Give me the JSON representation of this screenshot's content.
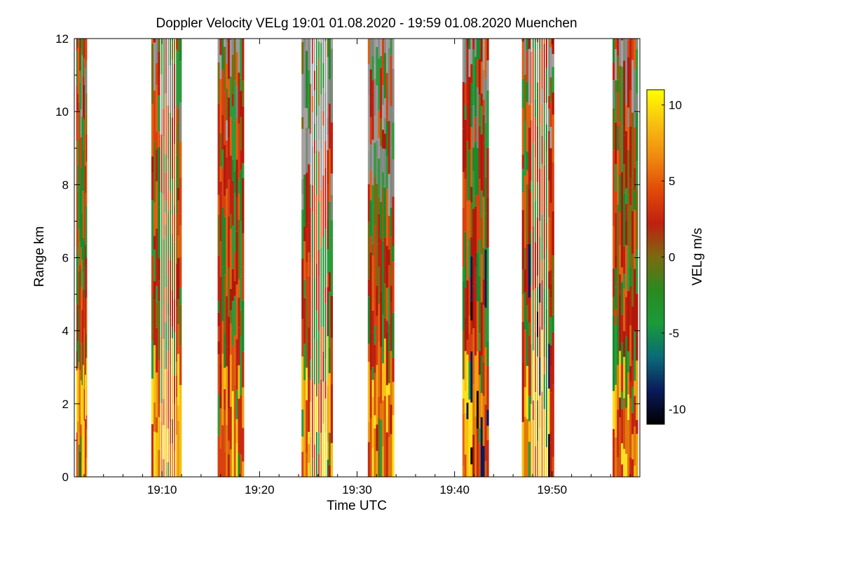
{
  "chart_data": {
    "type": "heatmap",
    "title": "Doppler Velocity VELg   19:01 01.08.2020 - 19:59 01.08.2020 Muenchen",
    "xlabel": "Time UTC",
    "ylabel": "Range km",
    "xlim_minutes": [
      1141,
      1199
    ],
    "x_ticks": [
      {
        "minute": 1150,
        "label": "19:10"
      },
      {
        "minute": 1160,
        "label": "19:20"
      },
      {
        "minute": 1170,
        "label": "19:30"
      },
      {
        "minute": 1180,
        "label": "19:40"
      },
      {
        "minute": 1190,
        "label": "19:50"
      }
    ],
    "ylim": [
      0,
      12
    ],
    "y_ticks": [
      {
        "value": 0,
        "label": "0"
      },
      {
        "value": 2,
        "label": "2"
      },
      {
        "value": 4,
        "label": "4"
      },
      {
        "value": 6,
        "label": "6"
      },
      {
        "value": 8,
        "label": "8"
      },
      {
        "value": 10,
        "label": "10"
      },
      {
        "value": 12,
        "label": "12"
      }
    ],
    "colorbar": {
      "label": "VELg m/s",
      "range": [
        -11,
        11
      ],
      "ticks": [
        {
          "value": 10,
          "label": "10"
        },
        {
          "value": 5,
          "label": "5"
        },
        {
          "value": 0,
          "label": "0"
        },
        {
          "value": -5,
          "label": "-5"
        },
        {
          "value": -10,
          "label": "-10"
        }
      ],
      "colors": [
        "#000000",
        "#0a1a5a",
        "#0a6a78",
        "#1a9a3a",
        "#2a8a20",
        "#7a6a10",
        "#c02010",
        "#e04a08",
        "#f08a10",
        "#f8c010",
        "#ffff00"
      ]
    },
    "scan_blocks": [
      {
        "start_min": 1141.2,
        "end_min": 1142.3,
        "dominant": "mixed red/green, yellow near ground"
      },
      {
        "start_min": 1148.9,
        "end_min": 1152.0,
        "dominant": "mixed red/green, thin column lines"
      },
      {
        "start_min": 1155.7,
        "end_min": 1158.4,
        "dominant": "red/orange with green"
      },
      {
        "start_min": 1164.3,
        "end_min": 1167.5,
        "dominant": "mixed, grey aloft"
      },
      {
        "start_min": 1171.1,
        "end_min": 1173.8,
        "dominant": "green/red, grey aloft, yellow below 4 km"
      },
      {
        "start_min": 1180.8,
        "end_min": 1183.5,
        "dominant": "green/red, black patches near ground"
      },
      {
        "start_min": 1186.9,
        "end_min": 1190.2,
        "dominant": "green/red, black patches, thin lines"
      },
      {
        "start_min": 1196.2,
        "end_min": 1198.8,
        "dominant": "red/green, yellow near ground"
      }
    ]
  }
}
